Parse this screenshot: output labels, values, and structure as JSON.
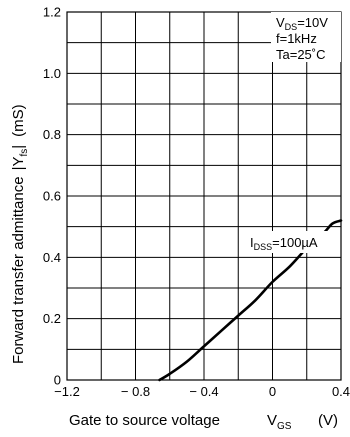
{
  "chart_data": {
    "type": "line",
    "xlabel": {
      "main": "Gate to source voltage",
      "symbol": "V",
      "sub": "GS",
      "unit": "(V)"
    },
    "ylabel": {
      "main": "Forward transfer admittance",
      "symbol": "|Y",
      "sub": "fs",
      "close": "|",
      "unit": "(mS)"
    },
    "xlim": [
      -1.2,
      0.4
    ],
    "ylim": [
      0,
      1.2
    ],
    "x_major_ticks": [
      -1.2,
      -0.8,
      -0.4,
      0,
      0.4
    ],
    "x_tick_labels": [
      "−1.2",
      "− 0.8",
      "− 0.4",
      "0",
      "0.4"
    ],
    "x_grid": [
      -1.2,
      -1.0,
      -0.8,
      -0.6,
      -0.4,
      -0.2,
      0,
      0.2,
      0.4
    ],
    "y_major_ticks": [
      0,
      0.2,
      0.4,
      0.6,
      0.8,
      1.0,
      1.2
    ],
    "y_tick_labels": [
      "0",
      "0.2",
      "0.4",
      "0.6",
      "0.8",
      "1.0",
      "1.2"
    ],
    "y_grid": [
      0,
      0.1,
      0.2,
      0.3,
      0.4,
      0.5,
      0.6,
      0.7,
      0.8,
      0.9,
      1.0,
      1.1,
      1.2
    ],
    "grid": true,
    "conditions": [
      {
        "main": "V",
        "sub": "DS",
        "rest": "=10V"
      },
      {
        "main": "f=1kHz"
      },
      {
        "main": "Ta=25˚C"
      }
    ],
    "series": [
      {
        "name": {
          "main": "I",
          "sub": "DSS",
          "rest": "=100µA"
        },
        "x": [
          -0.66,
          -0.6,
          -0.5,
          -0.4,
          -0.3,
          -0.2,
          -0.1,
          0.0,
          0.1,
          0.2,
          0.3,
          0.35,
          0.4
        ],
        "y": [
          0.0,
          0.02,
          0.06,
          0.11,
          0.16,
          0.21,
          0.26,
          0.32,
          0.37,
          0.43,
          0.48,
          0.51,
          0.52
        ]
      }
    ]
  }
}
